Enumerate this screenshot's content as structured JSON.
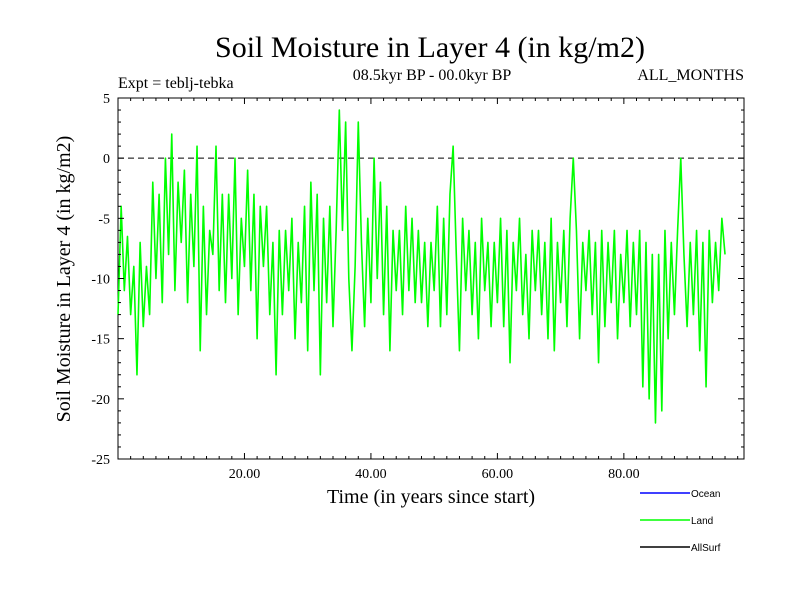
{
  "chart_data": {
    "type": "line",
    "title": "Soil Moisture in Layer 4 (in kg/m2)",
    "experiment_label": "Expt = teblj-tebka",
    "period_label": "08.5kyr BP - 00.0kyr BP",
    "months_label": "ALL_MONTHS",
    "xlabel": "Time (in years since start)",
    "ylabel": "Soil Moisture in Layer 4 (in kg/m2)",
    "xlim": [
      0,
      99
    ],
    "ylim": [
      -25,
      5
    ],
    "x_ticks": [
      20,
      40,
      60,
      80
    ],
    "x_tick_labels": [
      "20.00",
      "40.00",
      "60.00",
      "80.00"
    ],
    "y_ticks": [
      5,
      0,
      -5,
      -10,
      -15,
      -20,
      -25
    ],
    "y_tick_labels": [
      "5",
      "0",
      "-5",
      "-10",
      "-15",
      "-20",
      "-25"
    ],
    "reference_line": 0,
    "series_color": "#00ff00",
    "legend": [
      {
        "name": "Ocean",
        "color": "#0000ff"
      },
      {
        "name": "Land",
        "color": "#00ff00"
      },
      {
        "name": "AllSurf",
        "color": "#000000"
      }
    ],
    "series": [
      {
        "name": "Land",
        "x_start": 0,
        "x_step": 0.5,
        "values": [
          -13,
          -4,
          -11,
          -6.5,
          -13,
          -9,
          -18,
          -7,
          -14,
          -9,
          -13,
          -2,
          -10,
          -3,
          -12,
          0,
          -8,
          2,
          -11,
          -2,
          -7,
          -1,
          -12,
          -3,
          -9,
          1,
          -16,
          -4,
          -13,
          -6,
          -8,
          1,
          -11,
          -3,
          -12,
          -3,
          -10,
          0,
          -13,
          -5,
          -9,
          -1,
          -11,
          -3,
          -15,
          -4,
          -9,
          -4,
          -13,
          -7,
          -18,
          -6,
          -13,
          -6,
          -11,
          -5,
          -15,
          -7,
          -12,
          -4,
          -16,
          -2,
          -11,
          -3,
          -18,
          -5,
          -12,
          -4,
          -14,
          -6,
          4,
          -6,
          3,
          -10,
          -16,
          -9,
          3,
          -7,
          -14,
          -5,
          -12,
          0,
          -10,
          -2,
          -13,
          -4,
          -16,
          -6,
          -11,
          -6,
          -13,
          -4,
          -11,
          -5,
          -12,
          -6,
          -12,
          -7,
          -14,
          -7,
          -11,
          -4,
          -14,
          -5,
          -13,
          -3,
          1,
          -8,
          -16,
          -5,
          -11,
          -6,
          -13,
          -7,
          -15,
          -5,
          -11,
          -7,
          -14,
          -7,
          -12,
          -5,
          -14,
          -6,
          -17,
          -7,
          -11,
          -5,
          -13,
          -8,
          -15,
          -6,
          -11,
          -6,
          -13,
          -7,
          -15,
          -5,
          -16,
          -7,
          -12,
          -6,
          -14,
          -5,
          0,
          -6,
          -15,
          -7,
          -11,
          -6,
          -13,
          -7,
          -17,
          -6,
          -14,
          -7,
          -12,
          -6,
          -15,
          -8,
          -12,
          -6,
          -14,
          -7,
          -13,
          -6,
          -19,
          -7,
          -20,
          -8,
          -22,
          -8,
          -21,
          -6,
          -15,
          -7,
          -13,
          -6,
          0,
          -8,
          -14,
          -7,
          -13,
          -6,
          -16,
          -7,
          -19,
          -6,
          -12,
          -7,
          -11,
          -5,
          -8
        ]
      }
    ]
  }
}
